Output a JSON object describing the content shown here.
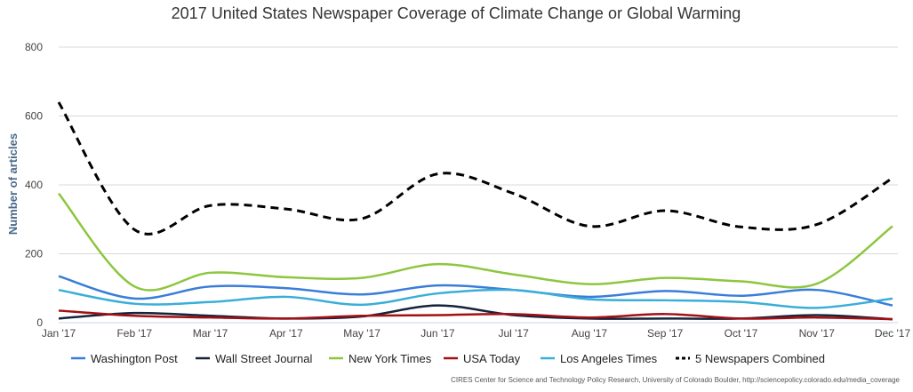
{
  "chart_data": {
    "type": "line",
    "title": "2017 United States Newspaper Coverage of Climate Change or Global Warming",
    "xlabel": "",
    "ylabel": "Number of articles",
    "categories": [
      "Jan '17",
      "Feb '17",
      "Mar '17",
      "Apr '17",
      "May '17",
      "Jun '17",
      "Jul '17",
      "Aug '17",
      "Sep '17",
      "Oct '17",
      "Nov '17",
      "Dec '17"
    ],
    "ylim": [
      0,
      800
    ],
    "yticks": [
      "0",
      "200",
      "400",
      "600",
      "800"
    ],
    "grid": true,
    "legend_position": "bottom",
    "series": [
      {
        "name": "Washington Post",
        "color": "#3a7dd8",
        "dash": "solid",
        "values": [
          135,
          70,
          105,
          100,
          82,
          108,
          95,
          75,
          92,
          78,
          95,
          50
        ]
      },
      {
        "name": "Wall Street Journal",
        "color": "#15243a",
        "dash": "solid",
        "values": [
          12,
          28,
          20,
          12,
          18,
          50,
          22,
          12,
          12,
          12,
          22,
          10
        ]
      },
      {
        "name": "New York Times",
        "color": "#8dc63f",
        "dash": "solid",
        "values": [
          375,
          105,
          145,
          132,
          130,
          170,
          140,
          112,
          130,
          120,
          113,
          280
        ]
      },
      {
        "name": "USA Today",
        "color": "#a30f14",
        "dash": "solid",
        "values": [
          35,
          20,
          15,
          12,
          20,
          22,
          25,
          15,
          25,
          12,
          15,
          10
        ]
      },
      {
        "name": "Los Angeles Times",
        "color": "#3aaed8",
        "dash": "solid",
        "values": [
          95,
          55,
          60,
          75,
          52,
          85,
          95,
          68,
          65,
          60,
          43,
          70
        ]
      },
      {
        "name": "5 Newspapers Combined",
        "color": "#000000",
        "dash": "dashed",
        "values": [
          640,
          270,
          340,
          330,
          302,
          432,
          375,
          280,
          325,
          278,
          285,
          420
        ]
      }
    ]
  },
  "credit": "CIRES Center for Science and Technology Policy Research, University of Colorado Boulder, http://sciencepolicy.colorado.edu/media_coverage"
}
